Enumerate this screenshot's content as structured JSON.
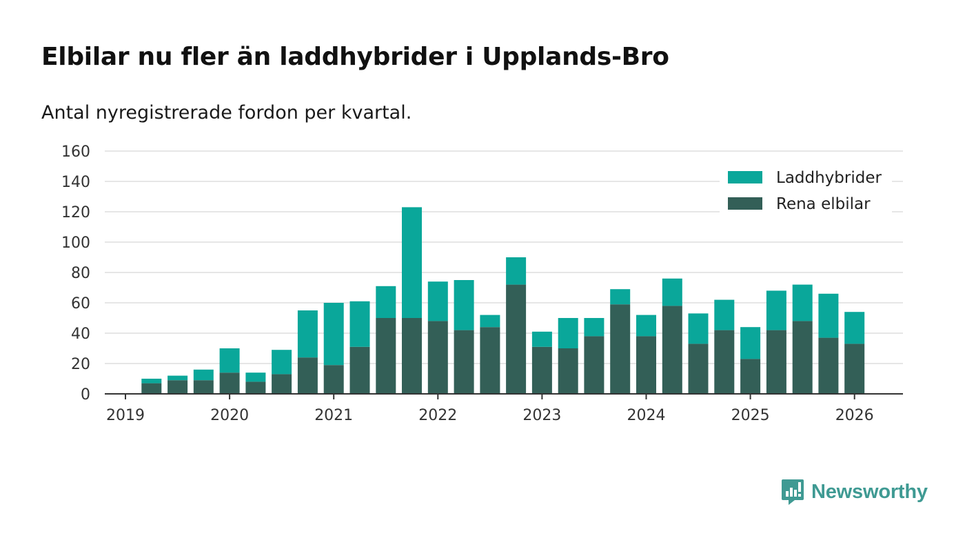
{
  "header": {
    "title": "Elbilar nu fler än laddhybrider i Upplands-Bro",
    "subtitle": "Antal nyregistrerade fordon per kvartal."
  },
  "brand": {
    "name": "Newsworthy",
    "icon": "newsworthy-logo-icon",
    "color": "#3f9a93"
  },
  "colors": {
    "laddhybrider": "#0aa79a",
    "rena_elbilar": "#335f57",
    "grid": "#dddddd",
    "axis": "#333333"
  },
  "chart_data": {
    "type": "bar",
    "stacked": true,
    "title": "Elbilar nu fler än laddhybrider i Upplands-Bro",
    "subtitle": "Antal nyregistrerade fordon per kvartal.",
    "xlabel": "",
    "ylabel": "",
    "ylim": [
      0,
      160
    ],
    "yticks": [
      0,
      20,
      40,
      60,
      80,
      100,
      120,
      140,
      160
    ],
    "xticks": [
      "2019",
      "2020",
      "2021",
      "2022",
      "2023",
      "2024",
      "2025",
      "2026"
    ],
    "grid": true,
    "legend": "top-right",
    "categories": [
      "2019-Q2",
      "2019-Q3",
      "2019-Q4",
      "2020-Q1",
      "2020-Q2",
      "2020-Q3",
      "2020-Q4",
      "2021-Q1",
      "2021-Q2",
      "2021-Q3",
      "2021-Q4",
      "2022-Q1",
      "2022-Q2",
      "2022-Q3",
      "2022-Q4",
      "2023-Q1",
      "2023-Q2",
      "2023-Q3",
      "2023-Q4",
      "2024-Q1",
      "2024-Q2",
      "2024-Q3",
      "2024-Q4",
      "2025-Q1",
      "2025-Q2",
      "2025-Q3",
      "2025-Q4",
      "2026-Q1"
    ],
    "series": [
      {
        "name": "Rena elbilar",
        "color": "#335f57",
        "values": [
          7,
          9,
          9,
          14,
          8,
          13,
          24,
          19,
          31,
          50,
          50,
          48,
          42,
          44,
          72,
          31,
          30,
          38,
          59,
          38,
          58,
          33,
          42,
          23,
          42,
          48,
          37,
          33
        ]
      },
      {
        "name": "Laddhybrider",
        "color": "#0aa79a",
        "values": [
          3,
          3,
          7,
          16,
          6,
          16,
          31,
          41,
          30,
          21,
          73,
          26,
          33,
          8,
          18,
          10,
          20,
          12,
          10,
          14,
          18,
          20,
          20,
          21,
          26,
          24,
          29,
          21
        ]
      }
    ],
    "legend_entries": [
      "Laddhybrider",
      "Rena elbilar"
    ]
  }
}
